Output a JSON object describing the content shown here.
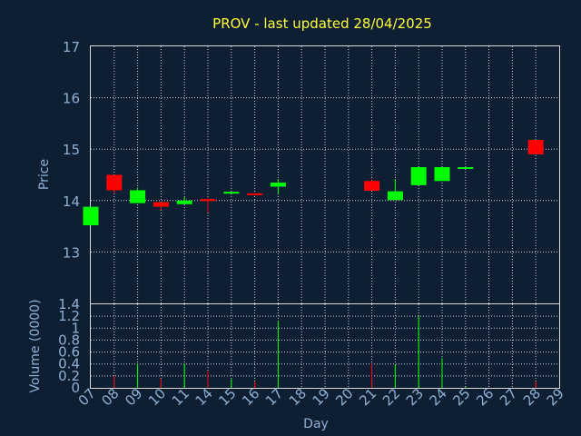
{
  "chart_data": {
    "type": "candlestick",
    "title": "PROV - last updated 28/04/2025",
    "xlabel": "Day",
    "x_ticks": [
      "07",
      "08",
      "09",
      "10",
      "11",
      "14",
      "15",
      "16",
      "17",
      "18",
      "19",
      "20",
      "21",
      "22",
      "23",
      "24",
      "25",
      "26",
      "27",
      "28",
      "29"
    ],
    "price": {
      "ylabel": "Price",
      "ylim": [
        12.0,
        17.0
      ],
      "y_ticks": [
        "17",
        "16",
        "15",
        "14",
        "13"
      ],
      "grid": true
    },
    "volume": {
      "ylabel": "Volume (0000)",
      "ylim": [
        0,
        1.4
      ],
      "y_ticks": [
        "1.4",
        "1.2",
        "1",
        "0.8",
        "0.6",
        "0.4",
        "0.2",
        "0"
      ],
      "grid": true
    },
    "colors": {
      "up": "#00ff00",
      "down": "#ff0000",
      "title": "#ffff3c",
      "axis_text": "#8fb0d4",
      "background": "#0f1f33"
    },
    "candles": [
      {
        "day": "07",
        "open": 13.52,
        "close": 13.88,
        "high": 13.88,
        "low": 13.52,
        "volume": 0.0
      },
      {
        "day": "08",
        "open": 14.5,
        "close": 14.2,
        "high": 14.5,
        "low": 14.15,
        "volume": 0.2
      },
      {
        "day": "09",
        "open": 13.95,
        "close": 14.2,
        "high": 14.25,
        "low": 13.95,
        "volume": 0.4
      },
      {
        "day": "10",
        "open": 13.97,
        "close": 13.88,
        "high": 13.97,
        "low": 13.82,
        "volume": 0.15
      },
      {
        "day": "11",
        "open": 13.93,
        "close": 14.0,
        "high": 14.07,
        "low": 13.93,
        "volume": 0.4
      },
      {
        "day": "14",
        "open": 14.03,
        "close": 13.99,
        "high": 14.05,
        "low": 13.77,
        "volume": 0.28
      },
      {
        "day": "15",
        "open": 14.16,
        "close": 14.17,
        "high": 14.17,
        "low": 14.16,
        "volume": 0.15
      },
      {
        "day": "16",
        "open": 14.14,
        "close": 14.12,
        "high": 14.14,
        "low": 14.12,
        "volume": 0.1
      },
      {
        "day": "17",
        "open": 14.27,
        "close": 14.35,
        "high": 14.42,
        "low": 14.12,
        "volume": 1.12
      },
      {
        "day": "21",
        "open": 14.38,
        "close": 14.19,
        "high": 14.42,
        "low": 14.19,
        "volume": 0.4
      },
      {
        "day": "22",
        "open": 14.01,
        "close": 14.18,
        "high": 14.42,
        "low": 14.01,
        "volume": 0.38
      },
      {
        "day": "23",
        "open": 14.3,
        "close": 14.65,
        "high": 14.65,
        "low": 14.3,
        "volume": 1.2
      },
      {
        "day": "24",
        "open": 14.38,
        "close": 14.65,
        "high": 14.65,
        "low": 14.38,
        "volume": 0.5
      },
      {
        "day": "25",
        "open": 14.63,
        "close": 14.65,
        "high": 14.65,
        "low": 14.63,
        "volume": 0.02
      },
      {
        "day": "28",
        "open": 15.18,
        "close": 14.9,
        "high": 15.18,
        "low": 14.9,
        "volume": 0.1
      }
    ]
  }
}
